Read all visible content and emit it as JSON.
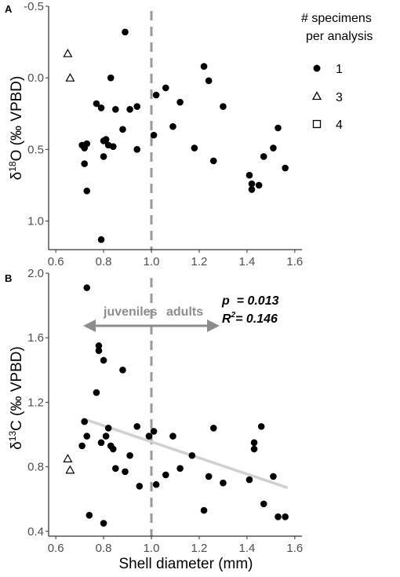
{
  "chart_data": [
    {
      "panel": "A",
      "type": "scatter",
      "ylabel_prefix": "δ",
      "ylabel_sup": "18",
      "ylabel_suffix": "O (‰ VPBD)",
      "xlim": [
        0.57,
        1.63
      ],
      "ylim": [
        1.2,
        -0.5
      ],
      "y_reversed": true,
      "xticks": [
        "0.6",
        "0.8",
        "1.0",
        "1.2",
        "1.4",
        "1.6"
      ],
      "yticks": [
        "-0.5",
        "0.0",
        "0.5",
        "1.0"
      ],
      "grid": false,
      "vline_x": 1.0,
      "series": [
        {
          "name": "1",
          "marker": "circle",
          "points": [
            [
              0.71,
              0.47
            ],
            [
              0.72,
              0.49
            ],
            [
              0.72,
              0.6
            ],
            [
              0.73,
              0.46
            ],
            [
              0.73,
              0.79
            ],
            [
              0.77,
              0.18
            ],
            [
              0.79,
              0.21
            ],
            [
              0.79,
              1.13
            ],
            [
              0.8,
              0.44
            ],
            [
              0.8,
              0.55
            ],
            [
              0.81,
              0.43
            ],
            [
              0.82,
              0.47
            ],
            [
              0.83,
              0.0
            ],
            [
              0.84,
              0.48
            ],
            [
              0.85,
              0.22
            ],
            [
              0.88,
              0.36
            ],
            [
              0.89,
              -0.32
            ],
            [
              0.91,
              0.22
            ],
            [
              0.94,
              0.2
            ],
            [
              0.94,
              0.5
            ],
            [
              1.01,
              0.4
            ],
            [
              1.02,
              0.12
            ],
            [
              1.06,
              0.07
            ],
            [
              1.09,
              0.34
            ],
            [
              1.12,
              0.17
            ],
            [
              1.18,
              0.49
            ],
            [
              1.22,
              -0.08
            ],
            [
              1.24,
              0.02
            ],
            [
              1.26,
              0.58
            ],
            [
              1.3,
              0.2
            ],
            [
              1.41,
              0.68
            ],
            [
              1.42,
              0.74
            ],
            [
              1.42,
              0.78
            ],
            [
              1.45,
              0.75
            ],
            [
              1.47,
              0.55
            ],
            [
              1.51,
              0.49
            ],
            [
              1.53,
              0.35
            ],
            [
              1.56,
              0.63
            ]
          ]
        },
        {
          "name": "3",
          "marker": "triangle",
          "points": [
            [
              0.65,
              -0.17
            ],
            [
              0.66,
              0.0
            ]
          ]
        }
      ]
    },
    {
      "panel": "B",
      "type": "scatter",
      "xlabel": "Shell diameter (mm)",
      "ylabel_prefix": "δ",
      "ylabel_sup": "13",
      "ylabel_suffix": "C (‰ VPBD)",
      "xlim": [
        0.57,
        1.63
      ],
      "ylim": [
        0.37,
        2.0
      ],
      "xticks": [
        "0.6",
        "0.8",
        "1.0",
        "1.2",
        "1.4",
        "1.6"
      ],
      "yticks": [
        "0.4",
        "0.8",
        "1.2",
        "1.6",
        "2.0"
      ],
      "grid": false,
      "vline_x": 1.0,
      "regression_line": {
        "x": [
          0.71,
          1.57
        ],
        "y": [
          1.1,
          0.67
        ]
      },
      "stats": {
        "p_label": "p",
        "p_value": "= 0.013",
        "r2_label": "R",
        "r2_sup": "2",
        "r2_value": "= 0.146"
      },
      "group_labels": {
        "left": "juveniles",
        "right": "adults"
      },
      "series": [
        {
          "name": "1",
          "marker": "circle",
          "points": [
            [
              0.71,
              0.93
            ],
            [
              0.72,
              1.08
            ],
            [
              0.73,
              1.91
            ],
            [
              0.73,
              0.99
            ],
            [
              0.74,
              0.5
            ],
            [
              0.77,
              1.26
            ],
            [
              0.78,
              1.55
            ],
            [
              0.78,
              1.52
            ],
            [
              0.8,
              1.46
            ],
            [
              0.79,
              0.95
            ],
            [
              0.8,
              0.45
            ],
            [
              0.81,
              0.99
            ],
            [
              0.82,
              1.04
            ],
            [
              0.83,
              0.93
            ],
            [
              0.84,
              0.91
            ],
            [
              0.85,
              0.79
            ],
            [
              0.88,
              1.4
            ],
            [
              0.89,
              0.77
            ],
            [
              0.91,
              0.87
            ],
            [
              0.94,
              1.05
            ],
            [
              0.95,
              0.68
            ],
            [
              0.99,
              0.99
            ],
            [
              1.01,
              1.02
            ],
            [
              1.02,
              0.69
            ],
            [
              1.06,
              0.75
            ],
            [
              1.09,
              0.99
            ],
            [
              1.12,
              0.79
            ],
            [
              1.17,
              0.87
            ],
            [
              1.22,
              0.53
            ],
            [
              1.24,
              0.74
            ],
            [
              1.26,
              1.04
            ],
            [
              1.3,
              0.7
            ],
            [
              1.41,
              0.72
            ],
            [
              1.43,
              0.91
            ],
            [
              1.43,
              0.95
            ],
            [
              1.46,
              1.05
            ],
            [
              1.47,
              0.57
            ],
            [
              1.51,
              0.74
            ],
            [
              1.53,
              0.49
            ],
            [
              1.56,
              0.49
            ]
          ]
        },
        {
          "name": "3",
          "marker": "triangle",
          "points": [
            [
              0.65,
              0.85
            ],
            [
              0.66,
              0.78
            ]
          ]
        }
      ]
    }
  ],
  "legend": {
    "title_line1": "# specimens",
    "title_line2": "per analysis",
    "position": "right",
    "items": [
      {
        "label": "1",
        "marker": "circle"
      },
      {
        "label": "3",
        "marker": "triangle"
      },
      {
        "label": "4",
        "marker": "square"
      }
    ]
  }
}
